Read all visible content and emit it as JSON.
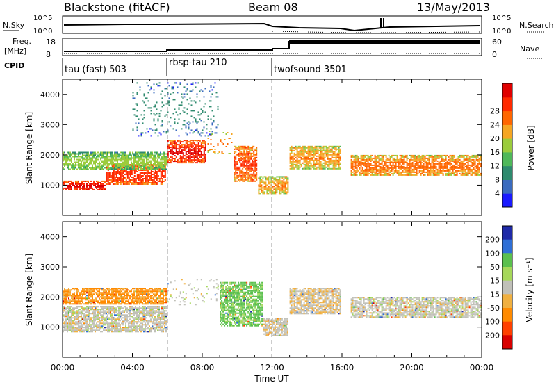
{
  "header": {
    "station": "Blackstone (fitACF)",
    "beam": "Beam 08",
    "date": "13/May/2013"
  },
  "aux_panels": {
    "nsky_label": "N.Sky",
    "nsearch_label": "N.Search",
    "nsky_ticks": [
      "10^5",
      "10^0"
    ],
    "nsearch_ticks": [
      "10^5",
      "10^0"
    ],
    "freq_label_1": "Freq.",
    "freq_label_2": "[MHz]",
    "freq_ticks": [
      "18",
      "8"
    ],
    "nave_label": "Nave",
    "nave_ticks": [
      "60",
      "0"
    ],
    "cpid_label": "CPID",
    "cpid_modes": [
      {
        "name": "tau (fast) 503",
        "start_hour": 0
      },
      {
        "name": "rbsp-tau 210",
        "start_hour": 6
      },
      {
        "name": "twofsound 3501",
        "start_hour": 12
      }
    ]
  },
  "colors": {
    "power_scale": [
      "#1a1aff",
      "#3a6bbf",
      "#2e8a6e",
      "#4fb85a",
      "#9bcc3c",
      "#f5a623",
      "#ff6600",
      "#ff2a00",
      "#e00000"
    ],
    "velocity_scale": [
      "#1f2aa8",
      "#2f6fd6",
      "#5bc04e",
      "#a6d85a",
      "#c0c0b8",
      "#f0b040",
      "#ff8a00",
      "#ff4000",
      "#d80000"
    ]
  },
  "chart_data": [
    {
      "type": "heatmap",
      "title": "",
      "xlabel": "Time UT",
      "ylabel": "Slant Range [km]",
      "xlim": [
        0,
        24
      ],
      "ylim": [
        0,
        4500
      ],
      "x_ticks": [
        "00:00",
        "04:00",
        "08:00",
        "12:00",
        "16:00",
        "20:00",
        "00:00"
      ],
      "y_ticks": [
        1000,
        2000,
        3000,
        4000
      ],
      "colorbar_label": "Power [dB]",
      "colorbar_ticks": [
        4,
        8,
        12,
        16,
        20,
        24,
        28
      ],
      "echo_bands": [
        {
          "start_hour": 0.0,
          "end_hour": 2.5,
          "range_min_km": 800,
          "range_max_km": 1150,
          "intensity": 28
        },
        {
          "start_hour": 2.5,
          "end_hour": 6.0,
          "range_min_km": 1000,
          "range_max_km": 1700,
          "intensity": 26
        },
        {
          "start_hour": 0.0,
          "end_hour": 6.0,
          "range_min_km": 1500,
          "range_max_km": 2100,
          "intensity": 16
        },
        {
          "start_hour": 6.0,
          "end_hour": 8.3,
          "range_min_km": 1700,
          "range_max_km": 2500,
          "intensity": 27
        },
        {
          "start_hour": 8.3,
          "end_hour": 9.8,
          "range_min_km": 2000,
          "range_max_km": 2800,
          "intensity": 22
        },
        {
          "start_hour": 9.8,
          "end_hour": 11.2,
          "range_min_km": 1100,
          "range_max_km": 2300,
          "intensity": 24
        },
        {
          "start_hour": 11.2,
          "end_hour": 13.0,
          "range_min_km": 700,
          "range_max_km": 1300,
          "intensity": 20
        },
        {
          "start_hour": 13.0,
          "end_hour": 16.0,
          "range_min_km": 1500,
          "range_max_km": 2300,
          "intensity": 20
        },
        {
          "start_hour": 16.5,
          "end_hour": 24.0,
          "range_min_km": 1300,
          "range_max_km": 2000,
          "intensity": 22
        },
        {
          "start_hour": 4.0,
          "end_hour": 9.0,
          "range_min_km": 2600,
          "range_max_km": 4400,
          "intensity": 10
        }
      ]
    },
    {
      "type": "heatmap",
      "title": "",
      "xlabel": "Time UT",
      "ylabel": "Slant Range [km]",
      "xlim": [
        0,
        24
      ],
      "ylim": [
        0,
        4500
      ],
      "x_ticks": [
        "00:00",
        "04:00",
        "08:00",
        "12:00",
        "16:00",
        "20:00",
        "00:00"
      ],
      "y_ticks": [
        1000,
        2000,
        3000,
        4000
      ],
      "colorbar_label": "Velocity [m s⁻¹]",
      "colorbar_ticks": [
        200,
        100,
        50,
        15,
        -15,
        -50,
        -100,
        -200
      ],
      "echo_bands": [
        {
          "start_hour": 0.0,
          "end_hour": 6.0,
          "range_min_km": 800,
          "range_max_km": 1700,
          "velocity": 0
        },
        {
          "start_hour": 0.0,
          "end_hour": 6.0,
          "range_min_km": 1700,
          "range_max_km": 2300,
          "velocity": -60
        },
        {
          "start_hour": 6.0,
          "end_hour": 9.0,
          "range_min_km": 1700,
          "range_max_km": 2600,
          "velocity": 0
        },
        {
          "start_hour": 9.0,
          "end_hour": 11.5,
          "range_min_km": 1000,
          "range_max_km": 2500,
          "velocity": 40
        },
        {
          "start_hour": 11.5,
          "end_hour": 13.0,
          "range_min_km": 700,
          "range_max_km": 1300,
          "velocity": -5
        },
        {
          "start_hour": 13.0,
          "end_hour": 16.0,
          "range_min_km": 1400,
          "range_max_km": 2300,
          "velocity": -10
        },
        {
          "start_hour": 16.5,
          "end_hour": 24.0,
          "range_min_km": 1300,
          "range_max_km": 2000,
          "velocity": 0
        }
      ]
    }
  ]
}
